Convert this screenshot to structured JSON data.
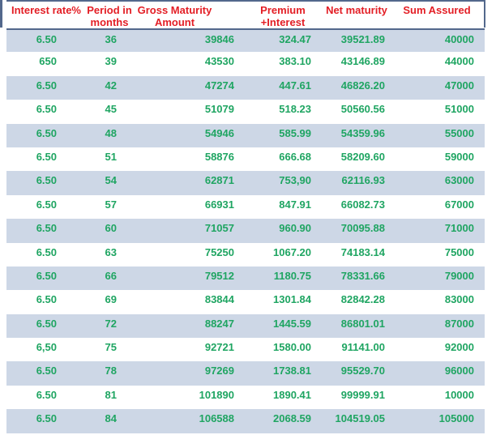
{
  "chart_data": {
    "type": "table",
    "columns": [
      "Interest rate%",
      "Period in months",
      "Gross Maturity Amount",
      "Premium +Interest",
      "Net maturity",
      "Sum Assured"
    ],
    "rows": [
      [
        "6.50",
        "36",
        "39846",
        "324.47",
        "39521.89",
        "40000"
      ],
      [
        "650",
        "39",
        "43530",
        "383.10",
        "43146.89",
        "44000"
      ],
      [
        "6.50",
        "42",
        "47274",
        "447.61",
        "46826.20",
        "47000"
      ],
      [
        "6.50",
        "45",
        "51079",
        "518.23",
        "50560.56",
        "51000"
      ],
      [
        "6.50",
        "48",
        "54946",
        "585.99",
        "54359.96",
        "55000"
      ],
      [
        "6.50",
        "51",
        "58876",
        "666.68",
        "58209.60",
        "59000"
      ],
      [
        "6.50",
        "54",
        "62871",
        "753,90",
        "62116.93",
        "63000"
      ],
      [
        "6.50",
        "57",
        "66931",
        "847.91",
        "66082.73",
        "67000"
      ],
      [
        "6.50",
        "60",
        "71057",
        "960.90",
        "70095.88",
        "71000"
      ],
      [
        "6.50",
        "63",
        "75250",
        "1067.20",
        "74183.14",
        "75000"
      ],
      [
        "6.50",
        "66",
        "79512",
        "1180.75",
        "78331.66",
        "79000"
      ],
      [
        "6.50",
        "69",
        "83844",
        "1301.84",
        "82842.28",
        "83000"
      ],
      [
        "6.50",
        "72",
        "88247",
        "1445.59",
        "86801.01",
        "87000"
      ],
      [
        "6,50",
        "75",
        "92721",
        "1580.00",
        "91141.00",
        "92000"
      ],
      [
        "6.50",
        "78",
        "97269",
        "1738.81",
        "95529.70",
        "96000"
      ],
      [
        "6.50",
        "81",
        "101890",
        "1890.41",
        "99999.91",
        "10000"
      ],
      [
        "6.50",
        "84",
        "106588",
        "2068.59",
        "104519.05",
        "105000"
      ]
    ],
    "layout": {
      "shaded_row_indices": [
        0,
        2,
        4,
        6,
        8,
        10,
        12,
        14,
        16
      ],
      "grid": "alternating-row-fill, no vertical gridlines"
    }
  },
  "table": {
    "header_display": [
      "Interest rate%",
      "Period in\nmonths",
      "Gross Maturity\nAmount",
      "Premium\n+Interest",
      "Net maturity",
      "Sum Assured"
    ]
  },
  "colors": {
    "header_text": "#e31e25",
    "value_text": "#1fa562",
    "row_shade": "#cdd7e6",
    "border": "#53688c",
    "background": "#ffffff"
  }
}
